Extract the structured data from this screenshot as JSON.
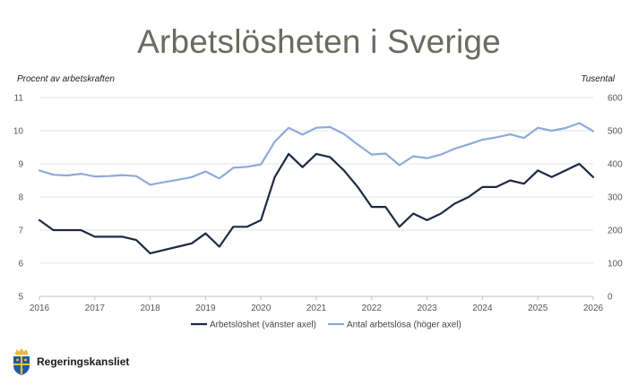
{
  "title": "Arbetslösheten i Sverige",
  "logo_text": "Regeringskansliet",
  "chart_data": {
    "type": "line",
    "title": "Arbetslösheten i Sverige",
    "ylabel_left": "Procent av arbetskraften",
    "ylabel_right": "Tusental",
    "x_ticks": [
      "2016",
      "2017",
      "2018",
      "2019",
      "2020",
      "2021",
      "2022",
      "2023",
      "2024",
      "2025",
      "2026"
    ],
    "y_left_ticks": [
      "5",
      "6",
      "7",
      "8",
      "9",
      "10",
      "11"
    ],
    "y_right_ticks": [
      "0",
      "100",
      "200",
      "300",
      "400",
      "500",
      "600"
    ],
    "ylim_left": [
      5,
      11
    ],
    "ylim_right": [
      0,
      600
    ],
    "grid": true,
    "legend_position": "bottom",
    "series": [
      {
        "name": "Arbetslöshet (vänster axel)",
        "axis": "left",
        "color": "#1c2a44",
        "x": [
          2016.0,
          2016.25,
          2016.5,
          2016.75,
          2017.0,
          2017.25,
          2017.5,
          2017.75,
          2018.0,
          2018.25,
          2018.5,
          2018.75,
          2019.0,
          2019.25,
          2019.5,
          2019.75,
          2020.0,
          2020.25,
          2020.5,
          2020.75,
          2021.0,
          2021.25,
          2021.5,
          2021.75,
          2022.0,
          2022.25,
          2022.5,
          2022.75,
          2023.0,
          2023.25,
          2023.5,
          2023.75,
          2024.0,
          2024.25,
          2024.5,
          2024.75,
          2025.0,
          2025.25,
          2025.5,
          2025.75,
          2026.0
        ],
        "values": [
          7.3,
          7.0,
          7.0,
          7.0,
          6.8,
          6.8,
          6.8,
          6.7,
          6.3,
          6.4,
          6.5,
          6.6,
          6.9,
          6.5,
          7.1,
          7.1,
          7.3,
          8.6,
          9.3,
          8.9,
          9.3,
          9.2,
          8.8,
          8.3,
          7.7,
          7.7,
          7.1,
          7.5,
          7.3,
          7.5,
          7.8,
          8.0,
          8.3,
          8.3,
          8.5,
          8.4,
          8.8,
          8.6,
          8.8,
          9.0,
          8.6
        ]
      },
      {
        "name": "Antal arbetslösa (höger axel)",
        "axis": "right",
        "color": "#8eaadb",
        "x": [
          2016.0,
          2016.25,
          2016.5,
          2016.75,
          2017.0,
          2017.25,
          2017.5,
          2017.75,
          2018.0,
          2018.25,
          2018.5,
          2018.75,
          2019.0,
          2019.25,
          2019.5,
          2019.75,
          2020.0,
          2020.25,
          2020.5,
          2020.75,
          2021.0,
          2021.25,
          2021.5,
          2021.75,
          2022.0,
          2022.25,
          2022.5,
          2022.75,
          2023.0,
          2023.25,
          2023.5,
          2023.75,
          2024.0,
          2024.25,
          2024.5,
          2024.75,
          2025.0,
          2025.25,
          2025.5,
          2025.75,
          2026.0
        ],
        "values": [
          380,
          367,
          365,
          370,
          362,
          363,
          366,
          363,
          337,
          345,
          352,
          360,
          377,
          356,
          388,
          391,
          398,
          467,
          509,
          488,
          509,
          511,
          490,
          458,
          428,
          431,
          396,
          423,
          417,
          428,
          446,
          459,
          473,
          480,
          489,
          478,
          509,
          500,
          508,
          523,
          499
        ]
      }
    ]
  }
}
